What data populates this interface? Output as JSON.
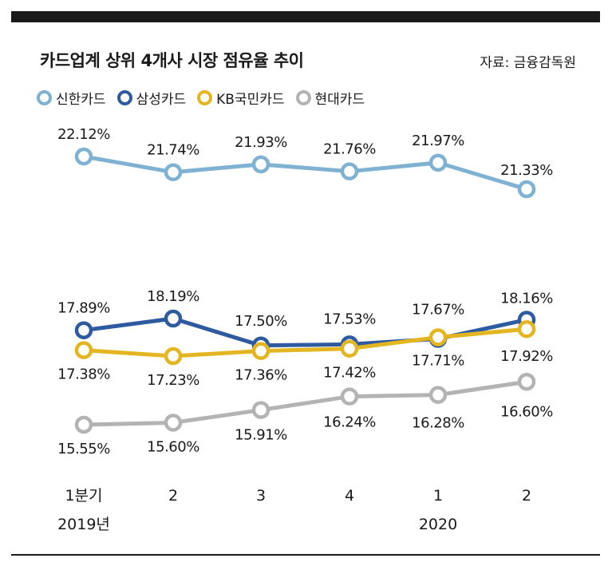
{
  "title": "카드업계 상위 4개사 시장 점유율 추이",
  "source": "자료: 금융감독원",
  "colors": {
    "shinhan": "#7fb2d2",
    "samsung": "#2e5aa0",
    "kb": "#e3b520",
    "hyundai": "#b3b3b3"
  },
  "chart_data": {
    "type": "line",
    "title": "카드업계 상위 4개사 시장 점유율 추이",
    "categories": [
      "1분기",
      "2",
      "3",
      "4",
      "1",
      "2"
    ],
    "category_years": [
      "2019년",
      "",
      "",
      "",
      "2020",
      ""
    ],
    "ylabel": "",
    "xlabel": "",
    "legend": "top-left",
    "grid": false,
    "series": [
      {
        "key": "shinhan",
        "name": "신한카드",
        "values": [
          22.12,
          21.74,
          21.93,
          21.76,
          21.97,
          21.33
        ],
        "labels": [
          "22.12%",
          "21.74%",
          "21.93%",
          "21.76%",
          "21.97%",
          "21.33%"
        ]
      },
      {
        "key": "samsung",
        "name": "삼성카드",
        "values": [
          17.89,
          18.19,
          17.5,
          17.53,
          17.67,
          18.16
        ],
        "labels": [
          "17.89%",
          "18.19%",
          "17.50%",
          "17.53%",
          "17.67%",
          "18.16%"
        ]
      },
      {
        "key": "kb",
        "name": "KB국민카드",
        "values": [
          17.38,
          17.23,
          17.36,
          17.42,
          17.71,
          17.92
        ],
        "labels": [
          "17.38%",
          "17.23%",
          "17.36%",
          "17.42%",
          "17.71%",
          "17.92%"
        ]
      },
      {
        "key": "hyundai",
        "name": "현대카드",
        "values": [
          15.55,
          15.6,
          15.91,
          16.24,
          16.28,
          16.6
        ],
        "labels": [
          "15.55%",
          "15.60%",
          "15.91%",
          "16.24%",
          "16.28%",
          "16.60%"
        ]
      }
    ]
  }
}
